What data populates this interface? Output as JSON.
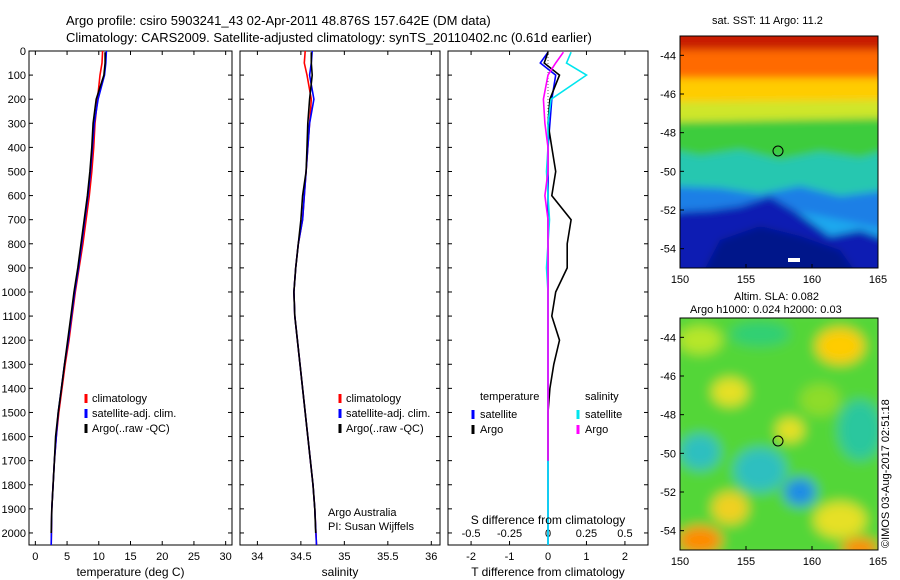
{
  "figure": {
    "title_line1": "Argo profile: csiro 5903241_43 02-Apr-2011 48.876S 157.642E (DM data)",
    "title_line2": "Climatology: CARS2009. Satellite-adjusted climatology: synTS_20110402.nc (0.61d earlier)",
    "watermark": "©IMOS 03-Aug-2017 02:51:18",
    "colors": {
      "red": "#ff0000",
      "blue": "#0000ff",
      "black": "#000000",
      "cyan": "#00e5ee",
      "magenta": "#ff00ff"
    }
  },
  "maps": {
    "sst_title": "sat. SST: 11  Argo: 11.2",
    "sla_title_line1": "Altim. SLA: 0.082",
    "sla_title_line2": "Argo h1000: 0.024  h2000: 0.03",
    "sst_colormap": "jet",
    "sla_colormap": "jet",
    "float_marker": {
      "lon": 157.642,
      "lat": -48.876
    }
  },
  "chart_data": [
    {
      "type": "line",
      "panel": "temperature",
      "xlabel": "temperature (deg C)",
      "ylabel": "",
      "xlim": [
        -1,
        31
      ],
      "ylim": [
        2050,
        0
      ],
      "y_reversed": true,
      "x_ticks": [
        0,
        5,
        10,
        15,
        20,
        25,
        30
      ],
      "y_ticks": [
        0,
        100,
        200,
        300,
        400,
        500,
        600,
        700,
        800,
        900,
        1000,
        1100,
        1200,
        1300,
        1400,
        1500,
        1600,
        1700,
        1800,
        1900,
        2000
      ],
      "legend": [
        "climatology",
        "satellite-adj. clim.",
        "Argo(..raw -QC)"
      ],
      "legend_position": "lower-right",
      "series": [
        {
          "name": "climatology",
          "color": "#ff0000",
          "x": [
            10.6,
            10.5,
            10.2,
            9.8,
            9.4,
            9.2,
            8.9,
            8.5,
            8.0,
            7.5,
            6.9,
            6.3,
            5.8,
            5.3,
            4.7,
            4.2,
            3.7,
            3.3,
            3.0,
            2.8,
            2.6,
            2.5
          ],
          "y": [
            0,
            50,
            100,
            200,
            300,
            400,
            500,
            600,
            700,
            800,
            900,
            1000,
            1100,
            1200,
            1300,
            1400,
            1500,
            1600,
            1700,
            1800,
            1900,
            2050
          ]
        },
        {
          "name": "satellite-adj. clim.",
          "color": "#0000ff",
          "x": [
            11.2,
            11.1,
            10.9,
            9.9,
            9.3,
            9.0,
            8.7,
            8.3,
            7.8,
            7.3,
            6.8,
            6.2,
            5.7,
            5.2,
            4.6,
            4.1,
            3.6,
            3.3,
            3.0,
            2.8,
            2.6,
            2.5
          ],
          "y": [
            0,
            50,
            100,
            200,
            300,
            400,
            500,
            600,
            700,
            800,
            900,
            1000,
            1100,
            1200,
            1300,
            1400,
            1500,
            1600,
            1700,
            1800,
            1900,
            2050
          ]
        },
        {
          "name": "Argo(..raw -QC)",
          "color": "#000000",
          "x": [
            11.0,
            11.0,
            10.8,
            9.6,
            9.1,
            8.9,
            8.6,
            8.2,
            7.7,
            7.2,
            6.7,
            6.1,
            5.6,
            5.1,
            4.6,
            4.1,
            3.6,
            3.2,
            3.0,
            2.8,
            2.6,
            2.5
          ],
          "y": [
            5,
            50,
            100,
            200,
            300,
            400,
            500,
            600,
            700,
            800,
            900,
            1000,
            1100,
            1200,
            1300,
            1400,
            1500,
            1600,
            1700,
            1800,
            1900,
            2000
          ]
        }
      ]
    },
    {
      "type": "line",
      "panel": "salinity",
      "xlabel": "salinity",
      "ylabel": "",
      "xlim": [
        33.8,
        36.1
      ],
      "ylim": [
        2050,
        0
      ],
      "y_reversed": true,
      "x_ticks": [
        34,
        34.5,
        35,
        35.5,
        36
      ],
      "legend": [
        "climatology",
        "satellite-adj. clim.",
        "Argo(..raw -QC)"
      ],
      "legend_position": "lower-right",
      "annotation_lines": [
        "Argo Australia",
        "PI: Susan Wijffels"
      ],
      "series": [
        {
          "name": "climatology",
          "color": "#ff0000",
          "x": [
            34.55,
            34.54,
            34.57,
            34.62,
            34.6,
            34.58,
            34.56,
            34.54,
            34.52,
            34.47,
            34.44,
            34.42,
            34.43,
            34.46,
            34.49,
            34.52,
            34.55,
            34.58,
            34.61,
            34.64,
            34.66,
            34.68
          ],
          "y": [
            0,
            50,
            100,
            200,
            300,
            400,
            500,
            600,
            700,
            800,
            900,
            1000,
            1100,
            1200,
            1300,
            1400,
            1500,
            1600,
            1700,
            1800,
            1900,
            2050
          ]
        },
        {
          "name": "satellite-adj. clim.",
          "color": "#0000ff",
          "x": [
            34.63,
            34.62,
            34.6,
            34.65,
            34.6,
            34.58,
            34.56,
            34.54,
            34.52,
            34.47,
            34.44,
            34.42,
            34.43,
            34.46,
            34.49,
            34.52,
            34.55,
            34.58,
            34.61,
            34.64,
            34.66,
            34.68
          ],
          "y": [
            0,
            50,
            100,
            200,
            300,
            400,
            500,
            600,
            700,
            800,
            900,
            1000,
            1100,
            1200,
            1300,
            1400,
            1500,
            1600,
            1700,
            1800,
            1900,
            2050
          ]
        },
        {
          "name": "Argo(..raw -QC)",
          "color": "#000000",
          "x": [
            34.62,
            34.62,
            34.63,
            34.6,
            34.58,
            34.57,
            34.56,
            34.52,
            34.5,
            34.47,
            34.44,
            34.42,
            34.43,
            34.46,
            34.49,
            34.52,
            34.55,
            34.58,
            34.61,
            34.64,
            34.66,
            34.67
          ],
          "y": [
            5,
            50,
            100,
            200,
            300,
            400,
            500,
            600,
            700,
            800,
            900,
            1000,
            1100,
            1200,
            1300,
            1400,
            1500,
            1600,
            1700,
            1800,
            1900,
            2000
          ]
        }
      ]
    },
    {
      "type": "line",
      "panel": "differences",
      "xlabel": "T difference from climatology",
      "x2label": "S difference from climatology",
      "xlim": [
        -2.6,
        2.6
      ],
      "ylim": [
        2050,
        0
      ],
      "y_reversed": true,
      "x_ticks": [
        -2,
        -1,
        0,
        1,
        2
      ],
      "x2_ticks": [
        -0.5,
        -0.25,
        0,
        0.25,
        0.5
      ],
      "legend_groups": [
        {
          "title": "temperature",
          "items": [
            "satellite",
            "Argo"
          ]
        },
        {
          "title": "salinity",
          "items": [
            "satellite",
            "Argo"
          ]
        }
      ],
      "legend_position": "lower-center",
      "series": [
        {
          "name": "temperature satellite",
          "color": "#0000ff",
          "x_axis": "T",
          "x": [
            0,
            -0.2,
            0.2,
            0.1,
            0.05,
            0,
            0,
            0,
            0,
            0,
            0,
            0,
            0,
            0,
            0,
            0,
            0,
            0,
            0
          ],
          "y": [
            5,
            50,
            100,
            200,
            300,
            400,
            500,
            600,
            700,
            800,
            900,
            1000,
            1100,
            1200,
            1300,
            1400,
            1500,
            1700,
            2050
          ]
        },
        {
          "name": "temperature Argo",
          "color": "#000000",
          "x_axis": "T",
          "x": [
            0,
            -0.1,
            0.3,
            0.05,
            0,
            0.1,
            0.2,
            0.1,
            0.6,
            0.5,
            0.5,
            0.2,
            0.1,
            0.3,
            0.15,
            0.05,
            0,
            0,
            0
          ],
          "y": [
            5,
            50,
            100,
            200,
            300,
            400,
            500,
            600,
            700,
            800,
            900,
            1000,
            1100,
            1200,
            1300,
            1400,
            1500,
            1600,
            1700
          ]
        },
        {
          "name": "salinity satellite",
          "color": "#00e5ee",
          "x_axis": "S",
          "x": [
            0.15,
            0.12,
            0.25,
            0.02,
            0.0,
            0.0,
            -0.01,
            0.0,
            0.01,
            0.0,
            -0.01,
            0.0,
            0,
            0,
            0,
            0,
            0,
            0,
            0
          ],
          "y": [
            5,
            50,
            100,
            200,
            300,
            400,
            500,
            600,
            700,
            800,
            900,
            1000,
            1100,
            1200,
            1300,
            1400,
            1500,
            1700,
            2050
          ]
        },
        {
          "name": "salinity Argo",
          "color": "#ff00ff",
          "x_axis": "S",
          "x": [
            0.1,
            0.05,
            0.0,
            -0.03,
            -0.02,
            0.0,
            0.0,
            -0.02,
            0.0,
            0.0,
            0.0,
            0.0,
            0,
            0,
            0,
            0,
            0,
            0,
            0
          ],
          "y": [
            5,
            50,
            100,
            200,
            300,
            400,
            500,
            600,
            700,
            800,
            900,
            1000,
            1100,
            1200,
            1300,
            1400,
            1500,
            1600,
            1700
          ]
        }
      ]
    },
    {
      "type": "heatmap",
      "panel": "sst-map",
      "title": "sat. SST: 11  Argo: 11.2",
      "xlim": [
        150,
        165
      ],
      "ylim": [
        -55,
        -43
      ],
      "x_ticks": [
        150,
        155,
        160,
        165
      ],
      "y_ticks": [
        -44,
        -46,
        -48,
        -50,
        -52,
        -54
      ]
    },
    {
      "type": "heatmap",
      "panel": "sla-map",
      "title": "Altim. SLA: 0.082",
      "xlim": [
        150,
        165
      ],
      "ylim": [
        -55,
        -43
      ],
      "x_ticks": [
        150,
        155,
        160,
        165
      ],
      "y_ticks": [
        -44,
        -46,
        -48,
        -50,
        -52,
        -54
      ]
    }
  ]
}
